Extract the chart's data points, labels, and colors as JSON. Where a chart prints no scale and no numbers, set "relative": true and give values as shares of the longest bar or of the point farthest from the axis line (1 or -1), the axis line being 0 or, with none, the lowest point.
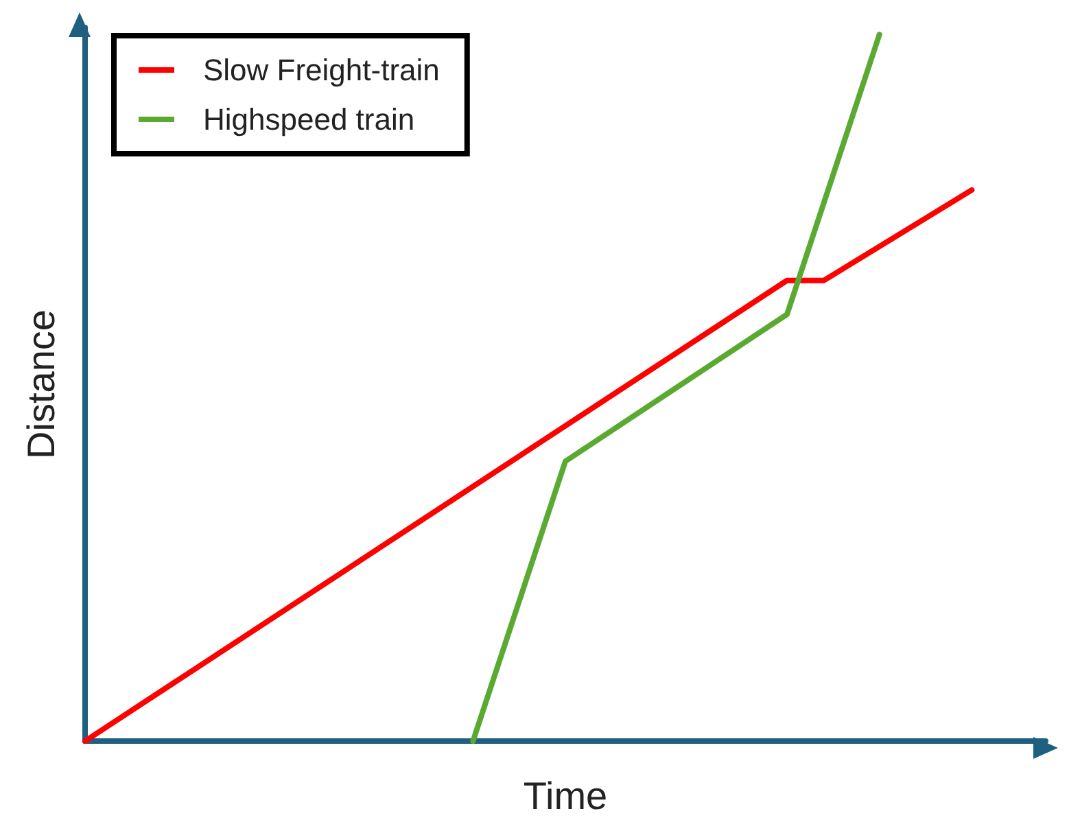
{
  "chart_data": {
    "type": "line",
    "relative": true,
    "xlabel": "Time",
    "ylabel": "Distance",
    "legend": "top left",
    "grid": false,
    "marker": "none",
    "line_style": "solid",
    "categories": [
      null,
      null,
      null,
      null,
      null,
      null,
      null,
      null,
      null,
      null,
      null,
      null,
      null,
      null,
      null,
      null,
      null,
      null,
      null,
      null,
      null,
      null,
      null,
      null,
      null,
      null,
      null,
      null,
      null,
      null,
      null,
      null,
      null,
      null,
      null,
      null,
      null,
      null,
      null,
      null,
      null,
      null,
      null,
      null,
      null,
      null,
      null,
      null,
      null,
      null,
      null,
      null,
      null
    ],
    "series": [
      {
        "name": "Slow Freight-train",
        "color": "#ff0000",
        "values": [
          0,
          null,
          null,
          null,
          null,
          null,
          null,
          null,
          null,
          null,
          null,
          null,
          null,
          null,
          null,
          null,
          null,
          null,
          null,
          null,
          null,
          null,
          null,
          null,
          null,
          null,
          null,
          null,
          null,
          null,
          null,
          null,
          null,
          null,
          null,
          null,
          null,
          null,
          0.652,
          null,
          0.652,
          null,
          null,
          null,
          null,
          null,
          null,
          null,
          0.78,
          null,
          null,
          null,
          null
        ]
      },
      {
        "name": "Highspeed train",
        "color": "#5aaa32",
        "values": [
          null,
          null,
          null,
          null,
          null,
          null,
          null,
          null,
          null,
          null,
          null,
          null,
          null,
          null,
          null,
          null,
          null,
          null,
          null,
          null,
          null,
          0,
          null,
          null,
          null,
          null,
          0.396,
          null,
          null,
          null,
          null,
          null,
          null,
          null,
          null,
          null,
          null,
          null,
          0.604,
          null,
          null,
          null,
          null,
          1,
          null,
          null,
          null,
          null,
          null,
          null,
          null,
          null,
          null
        ]
      }
    ]
  }
}
